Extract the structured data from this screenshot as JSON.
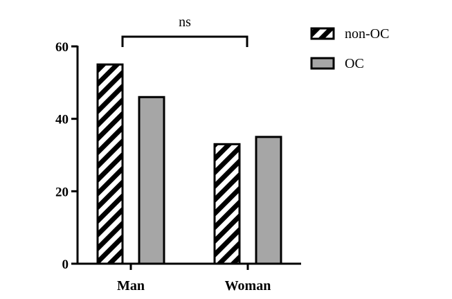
{
  "chart_data": {
    "type": "bar",
    "categories": [
      "Man",
      "Woman"
    ],
    "series": [
      {
        "name": "non-OC",
        "values": [
          55,
          33
        ],
        "pattern": "hatched",
        "color": "#000000",
        "fill_bg": "#ffffff"
      },
      {
        "name": "OC",
        "values": [
          46,
          35
        ],
        "pattern": "solid",
        "color": "#a6a6a6"
      }
    ],
    "yticks": [
      0,
      20,
      40,
      60
    ],
    "ylim": [
      0,
      60
    ],
    "title": "",
    "xlabel": "",
    "ylabel": "",
    "legend_position": "top-right",
    "annotation": {
      "label": "ns",
      "between": [
        "Man",
        "Woman"
      ]
    },
    "grid": false
  }
}
